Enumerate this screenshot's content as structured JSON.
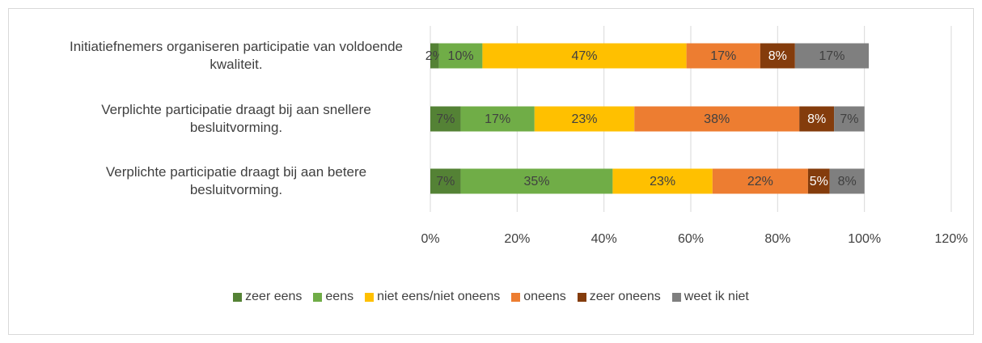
{
  "chart_data": {
    "type": "stacked_barh",
    "categories": [
      "Initiatiefnemers organiseren participatie van voldoende kwaliteit.",
      "Verplichte participatie draagt bij aan snellere besluitvorming.",
      "Verplichte participatie draagt bij aan betere besluitvorming."
    ],
    "series": [
      {
        "name": "zeer eens",
        "color": "#548235",
        "label_color": "#404040",
        "values": [
          2,
          7,
          7
        ],
        "value_labels": [
          "2%",
          "7%",
          "7%"
        ]
      },
      {
        "name": "eens",
        "color": "#70ad47",
        "label_color": "#404040",
        "values": [
          10,
          17,
          35
        ],
        "value_labels": [
          "10%",
          "17%",
          "35%"
        ]
      },
      {
        "name": "niet eens/niet oneens",
        "color": "#ffc000",
        "label_color": "#404040",
        "values": [
          47,
          23,
          23
        ],
        "value_labels": [
          "47%",
          "23%",
          "23%"
        ]
      },
      {
        "name": "oneens",
        "color": "#ed7d31",
        "label_color": "#404040",
        "values": [
          17,
          38,
          22
        ],
        "value_labels": [
          "17%",
          "38%",
          "22%"
        ]
      },
      {
        "name": "zeer oneens",
        "color": "#843c0c",
        "label_color": "#ffffff",
        "values": [
          8,
          8,
          5
        ],
        "value_labels": [
          "8%",
          "8%",
          "5%"
        ]
      },
      {
        "name": "weet ik niet",
        "color": "#7f7f7f",
        "label_color": "#404040",
        "values": [
          17,
          7,
          8
        ],
        "value_labels": [
          "17%",
          "7%",
          "8%"
        ]
      }
    ],
    "xlim": [
      0,
      120
    ],
    "xticks": [
      {
        "value": 0,
        "label": "0%"
      },
      {
        "value": 20,
        "label": "20%"
      },
      {
        "value": 40,
        "label": "40%"
      },
      {
        "value": 60,
        "label": "60%"
      },
      {
        "value": 80,
        "label": "80%"
      },
      {
        "value": 100,
        "label": "100%"
      },
      {
        "value": 120,
        "label": "120%"
      }
    ],
    "grid": true,
    "legend": "bottom"
  }
}
